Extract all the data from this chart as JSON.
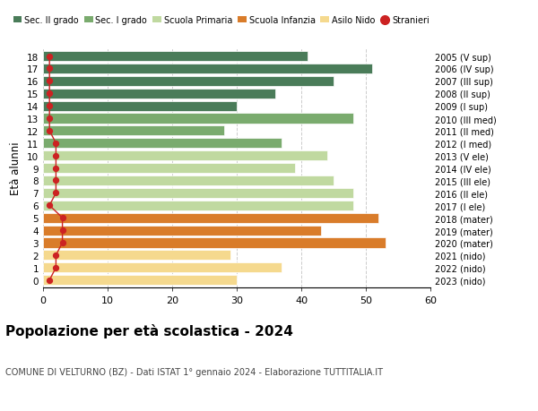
{
  "ages": [
    18,
    17,
    16,
    15,
    14,
    13,
    12,
    11,
    10,
    9,
    8,
    7,
    6,
    5,
    4,
    3,
    2,
    1,
    0
  ],
  "labels_right": [
    "2005 (V sup)",
    "2006 (IV sup)",
    "2007 (III sup)",
    "2008 (II sup)",
    "2009 (I sup)",
    "2010 (III med)",
    "2011 (II med)",
    "2012 (I med)",
    "2013 (V ele)",
    "2014 (IV ele)",
    "2015 (III ele)",
    "2016 (II ele)",
    "2017 (I ele)",
    "2018 (mater)",
    "2019 (mater)",
    "2020 (mater)",
    "2021 (nido)",
    "2022 (nido)",
    "2023 (nido)"
  ],
  "bar_values": [
    41,
    51,
    45,
    36,
    30,
    48,
    28,
    37,
    44,
    39,
    45,
    48,
    48,
    52,
    43,
    53,
    29,
    37,
    30
  ],
  "bar_colors": [
    "#4a7c59",
    "#4a7c59",
    "#4a7c59",
    "#4a7c59",
    "#4a7c59",
    "#7aab6e",
    "#7aab6e",
    "#7aab6e",
    "#c0d9a0",
    "#c0d9a0",
    "#c0d9a0",
    "#c0d9a0",
    "#c0d9a0",
    "#d97c2a",
    "#d97c2a",
    "#d97c2a",
    "#f5d98e",
    "#f5d98e",
    "#f5d98e"
  ],
  "stranieri_values": [
    1,
    1,
    1,
    1,
    1,
    1,
    1,
    2,
    2,
    2,
    2,
    2,
    1,
    3,
    3,
    3,
    2,
    2,
    1
  ],
  "legend_labels": [
    "Sec. II grado",
    "Sec. I grado",
    "Scuola Primaria",
    "Scuola Infanzia",
    "Asilo Nido",
    "Stranieri"
  ],
  "legend_colors": [
    "#4a7c59",
    "#7aab6e",
    "#c0d9a0",
    "#d97c2a",
    "#f5d98e",
    "#cc2222"
  ],
  "title": "Popolazione per età scolastica - 2024",
  "subtitle": "COMUNE DI VELTURNO (BZ) - Dati ISTAT 1° gennaio 2024 - Elaborazione TUTTITALIA.IT",
  "ylabel_left": "Età alunni",
  "xlim": [
    0,
    60
  ],
  "xticks": [
    0,
    10,
    20,
    30,
    40,
    50,
    60
  ],
  "background_color": "#ffffff",
  "bar_height": 0.8,
  "grid_color": "#cccccc"
}
